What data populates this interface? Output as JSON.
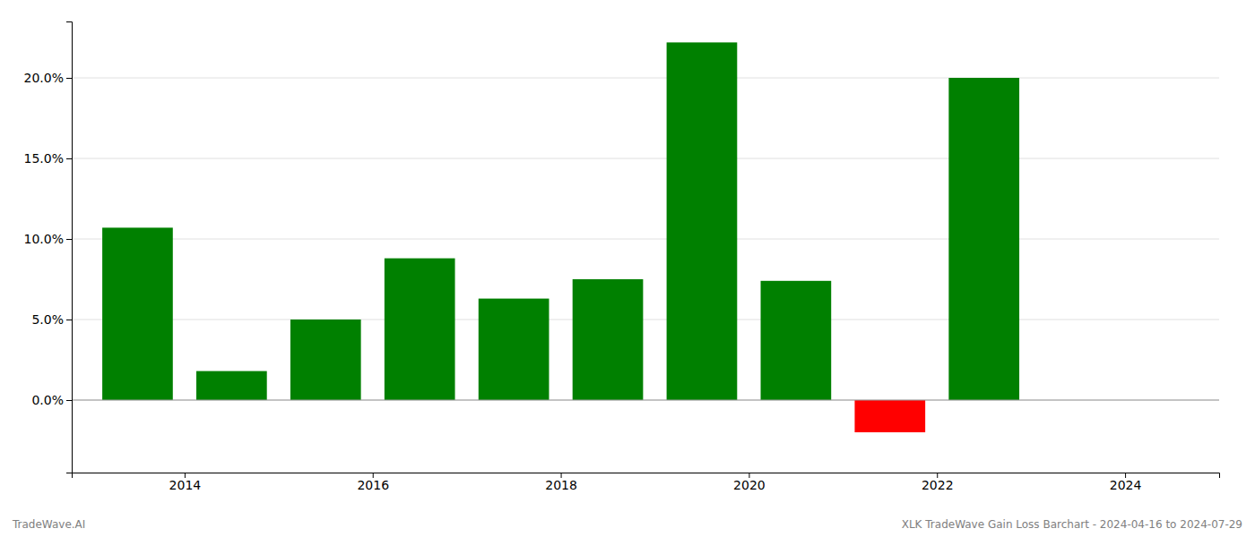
{
  "chart_data": {
    "type": "bar",
    "x": [
      2013.5,
      2014.5,
      2015.5,
      2016.5,
      2017.5,
      2018.5,
      2019.5,
      2020.5,
      2021.5,
      2022.5
    ],
    "values": [
      0.107,
      0.018,
      0.05,
      0.088,
      0.063,
      0.075,
      0.222,
      0.074,
      -0.02,
      0.2
    ],
    "colors": [
      "#008000",
      "#008000",
      "#008000",
      "#008000",
      "#008000",
      "#008000",
      "#008000",
      "#008000",
      "#ff0000",
      "#008000"
    ],
    "xlim": [
      2012.8,
      2025.0
    ],
    "xticks": [
      2014,
      2016,
      2018,
      2020,
      2022,
      2024
    ],
    "ylim": [
      -0.045,
      0.235
    ],
    "yticks": [
      {
        "value": 0.0,
        "label": "0.0%"
      },
      {
        "value": 0.05,
        "label": "5.0%"
      },
      {
        "value": 0.1,
        "label": "10.0%"
      },
      {
        "value": 0.15,
        "label": "15.0%"
      },
      {
        "value": 0.2,
        "label": "20.0%"
      }
    ],
    "grid": true,
    "annotations": [
      "TradeWave.AI",
      "XLK TradeWave Gain Loss Barchart - 2024-04-16 to 2024-07-29"
    ]
  }
}
